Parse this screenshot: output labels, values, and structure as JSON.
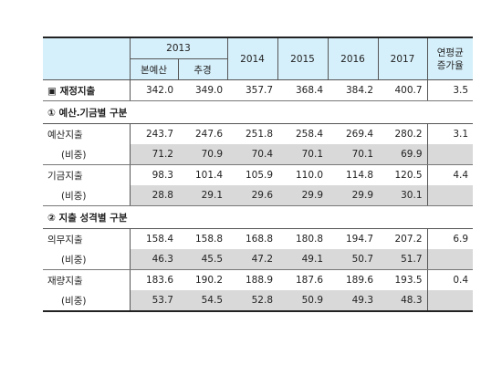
{
  "header": {
    "year_2013": "2013",
    "sub_budget": "본예산",
    "sub_supp": "추경",
    "years": [
      "2014",
      "2015",
      "2016",
      "2017"
    ],
    "avg_rate_line1": "연평균",
    "avg_rate_line2": "증가율"
  },
  "total": {
    "label": "▣ 재정지출",
    "values": [
      "342.0",
      "349.0",
      "357.7",
      "368.4",
      "384.2",
      "400.7",
      "3.5"
    ]
  },
  "section1": {
    "title": "① 예산․기금별 구분",
    "rows": [
      {
        "label": "예산지출",
        "values": [
          "243.7",
          "247.6",
          "251.8",
          "258.4",
          "269.4",
          "280.2",
          "3.1"
        ]
      },
      {
        "label": "(비중)",
        "values": [
          "71.2",
          "70.9",
          "70.4",
          "70.1",
          "70.1",
          "69.9",
          ""
        ]
      },
      {
        "label": "기금지출",
        "values": [
          "98.3",
          "101.4",
          "105.9",
          "110.0",
          "114.8",
          "120.5",
          "4.4"
        ]
      },
      {
        "label": "(비중)",
        "values": [
          "28.8",
          "29.1",
          "29.6",
          "29.9",
          "29.9",
          "30.1",
          ""
        ]
      }
    ]
  },
  "section2": {
    "title": "② 지출 성격별 구분",
    "rows": [
      {
        "label": "의무지출",
        "values": [
          "158.4",
          "158.8",
          "168.8",
          "180.8",
          "194.7",
          "207.2",
          "6.9"
        ]
      },
      {
        "label": "(비중)",
        "values": [
          "46.3",
          "45.5",
          "47.2",
          "49.1",
          "50.7",
          "51.7",
          ""
        ]
      },
      {
        "label": "재량지출",
        "values": [
          "183.6",
          "190.2",
          "188.9",
          "187.6",
          "189.6",
          "193.5",
          "0.4"
        ]
      },
      {
        "label": "(비중)",
        "values": [
          "53.7",
          "54.5",
          "52.8",
          "50.9",
          "49.3",
          "48.3",
          ""
        ]
      }
    ]
  }
}
